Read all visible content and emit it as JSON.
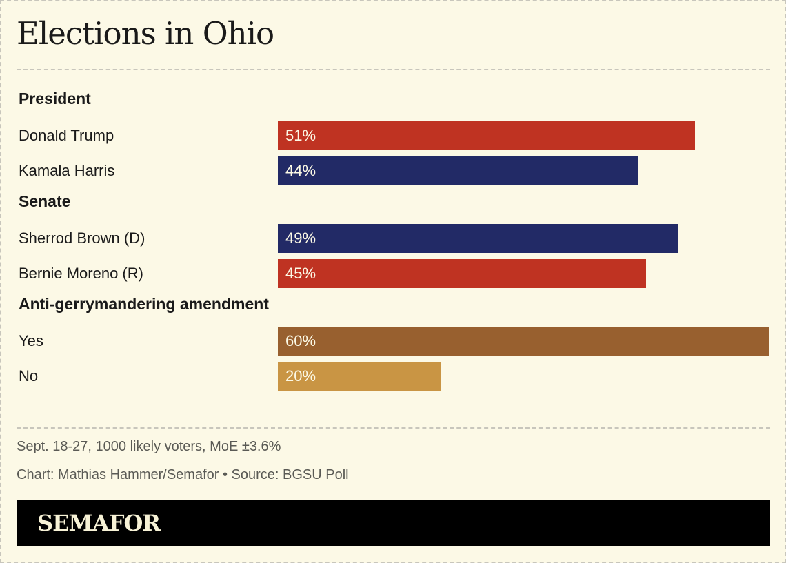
{
  "title": "Elections in Ohio",
  "chart_data": {
    "type": "bar",
    "orientation": "horizontal",
    "title": "Elections in Ohio",
    "xlim": [
      0,
      60
    ],
    "groups": [
      {
        "name": "President",
        "items": [
          {
            "label": "Donald Trump",
            "value": 51,
            "value_label": "51%",
            "color": "#bf3322"
          },
          {
            "label": "Kamala Harris",
            "value": 44,
            "value_label": "44%",
            "color": "#222a66"
          }
        ]
      },
      {
        "name": "Senate",
        "items": [
          {
            "label": "Sherrod Brown (D)",
            "value": 49,
            "value_label": "49%",
            "color": "#222a66"
          },
          {
            "label": "Bernie Moreno (R)",
            "value": 45,
            "value_label": "45%",
            "color": "#bf3322"
          }
        ]
      },
      {
        "name": "Anti-gerrymandering amendment",
        "items": [
          {
            "label": "Yes",
            "value": 60,
            "value_label": "60%",
            "color": "#98602f"
          },
          {
            "label": "No",
            "value": 20,
            "value_label": "20%",
            "color": "#c99544"
          }
        ]
      }
    ]
  },
  "notes": {
    "sample": "Sept. 18-27, 1000 likely voters, MoE ±3.6%",
    "credit": "Chart: Mathias Hammer/Semafor • Source: BGSU Poll"
  },
  "footer": {
    "logo": "SEMAFOR"
  }
}
